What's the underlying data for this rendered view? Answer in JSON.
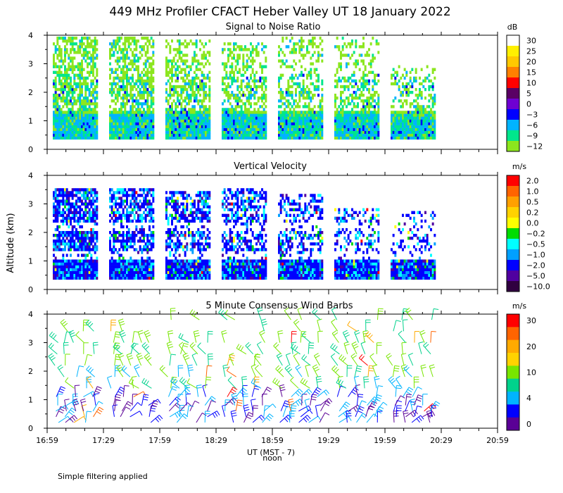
{
  "title": "449 MHz Profiler CFACT Heber Valley UT 18 January 2022",
  "footnote": "Simple filtering applied",
  "xaxis": {
    "label": "UT  (MST - 7)",
    "noon_label": "noon",
    "ticks": [
      "16:59",
      "17:29",
      "17:59",
      "18:29",
      "18:59",
      "19:29",
      "19:59",
      "20:29",
      "20:59"
    ]
  },
  "yaxis": {
    "label": "Altitude (km)",
    "ticks": [
      "0",
      "1",
      "2",
      "3",
      "4"
    ]
  },
  "chart_data": [
    {
      "type": "heatmap",
      "title": "Signal to Noise Ratio",
      "units": "dB",
      "xlim": [
        0,
        240
      ],
      "ylim": [
        0,
        4
      ],
      "colorbar": [
        {
          "label": "30",
          "color": "#ffffff"
        },
        {
          "label": "25",
          "color": "#fff000"
        },
        {
          "label": "20",
          "color": "#ffc800"
        },
        {
          "label": "15",
          "color": "#ff8000"
        },
        {
          "label": "10",
          "color": "#ff0000"
        },
        {
          "label": "5",
          "color": "#5a0064"
        },
        {
          "label": "0",
          "color": "#6e00d2"
        },
        {
          "label": "−3",
          "color": "#0000ff"
        },
        {
          "label": "−6",
          "color": "#00b4ff"
        },
        {
          "label": "−9",
          "color": "#00e68c"
        },
        {
          "label": "−12",
          "color": "#8ce61e"
        }
      ],
      "data_blocks_minutes": [
        [
          3,
          27
        ],
        [
          33,
          57
        ],
        [
          63,
          87
        ],
        [
          93,
          117
        ],
        [
          123,
          147
        ],
        [
          153,
          177
        ],
        [
          183,
          207
        ]
      ]
    },
    {
      "type": "heatmap",
      "title": "Vertical Velocity",
      "units": "m/s",
      "xlim": [
        0,
        240
      ],
      "ylim": [
        0,
        4
      ],
      "colorbar": [
        {
          "label": "2.0",
          "color": "#ff0000"
        },
        {
          "label": "1.0",
          "color": "#ff6400"
        },
        {
          "label": "0.5",
          "color": "#ffa000"
        },
        {
          "label": "0.2",
          "color": "#ffd200"
        },
        {
          "label": "0.0",
          "color": "#ffff00"
        },
        {
          "label": "−0.2",
          "color": "#00dc00"
        },
        {
          "label": "−0.5",
          "color": "#00ffff"
        },
        {
          "label": "−1.0",
          "color": "#00a0ff"
        },
        {
          "label": "−2.0",
          "color": "#0000ff"
        },
        {
          "label": "−5.0",
          "color": "#5000a0"
        },
        {
          "label": "−10.0",
          "color": "#300040"
        }
      ]
    },
    {
      "type": "scatter",
      "title": "5 Minute Consensus Wind Barbs",
      "units": "m/s",
      "xlim": [
        0,
        240
      ],
      "ylim": [
        0,
        4
      ],
      "colorbar": [
        {
          "label": "30",
          "color": "#ff0000"
        },
        {
          "label": "",
          "color": "#ff6400"
        },
        {
          "label": "20",
          "color": "#ffaa00"
        },
        {
          "label": "",
          "color": "#ffd200"
        },
        {
          "label": "10",
          "color": "#78e600"
        },
        {
          "label": "",
          "color": "#00d28c"
        },
        {
          "label": "4",
          "color": "#00b4ff"
        },
        {
          "label": "",
          "color": "#0000ff"
        },
        {
          "label": "0",
          "color": "#5a0096"
        }
      ],
      "barb_columns_minutes": [
        5,
        10,
        15,
        20,
        25,
        35,
        40,
        45,
        50,
        55,
        65,
        70,
        75,
        80,
        85,
        95,
        100,
        105,
        110,
        115,
        125,
        130,
        135,
        140,
        145,
        155,
        160,
        165,
        170,
        175,
        185,
        190,
        195,
        200,
        205
      ],
      "barb_heights_km": [
        0.2,
        0.4,
        0.6,
        0.8,
        1.1,
        1.4,
        1.8,
        2.2,
        2.6,
        3.0,
        3.4,
        3.8
      ],
      "speed_classes_ms": [
        0,
        4,
        10,
        20,
        30
      ]
    }
  ]
}
